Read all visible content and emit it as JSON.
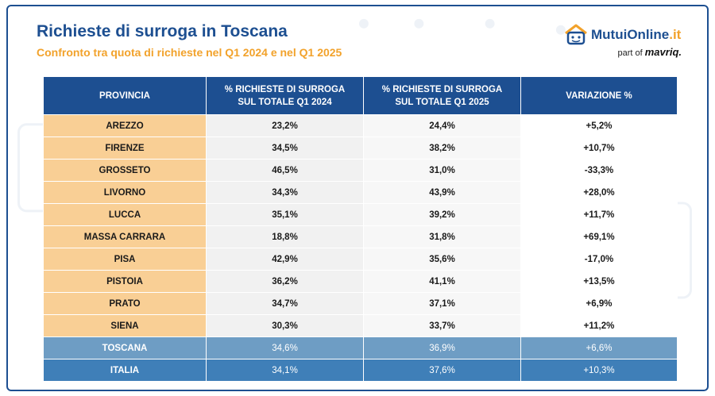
{
  "header": {
    "title": "Richieste di surroga in Toscana",
    "subtitle": "Confronto tra quota di richieste nel Q1 2024 e nel Q1 2025"
  },
  "logo": {
    "brand": "MutuiOnline",
    "brand_suffix": ".it",
    "part_of": "part of",
    "parent": "mavriq."
  },
  "table": {
    "headers": [
      "PROVINCIA",
      "% RICHIESTE DI SURROGA SUL TOTALE Q1 2024",
      "% RICHIESTE DI SURROGA SUL TOTALE Q1 2025",
      "VARIAZIONE %"
    ],
    "rows": [
      [
        "AREZZO",
        "23,2%",
        "24,4%",
        "+5,2%"
      ],
      [
        "FIRENZE",
        "34,5%",
        "38,2%",
        "+10,7%"
      ],
      [
        "GROSSETO",
        "46,5%",
        "31,0%",
        "-33,3%"
      ],
      [
        "LIVORNO",
        "34,3%",
        "43,9%",
        "+28,0%"
      ],
      [
        "LUCCA",
        "35,1%",
        "39,2%",
        "+11,7%"
      ],
      [
        "MASSA CARRARA",
        "18,8%",
        "31,8%",
        "+69,1%"
      ],
      [
        "PISA",
        "42,9%",
        "35,6%",
        "-17,0%"
      ],
      [
        "PISTOIA",
        "36,2%",
        "41,1%",
        "+13,5%"
      ],
      [
        "PRATO",
        "34,7%",
        "37,1%",
        "+6,9%"
      ],
      [
        "SIENA",
        "30,3%",
        "33,7%",
        "+11,2%"
      ]
    ],
    "totals": [
      [
        "TOSCANA",
        "34,6%",
        "36,9%",
        "+6,6%"
      ],
      [
        "ITALIA",
        "34,1%",
        "37,6%",
        "+10,3%"
      ]
    ]
  },
  "colors": {
    "primary": "#1d4f91",
    "accent": "#f2a22b",
    "province_cell": "#f9cf95",
    "toscana_row": "#6e9dc4",
    "italia_row": "#3f7fb8"
  }
}
